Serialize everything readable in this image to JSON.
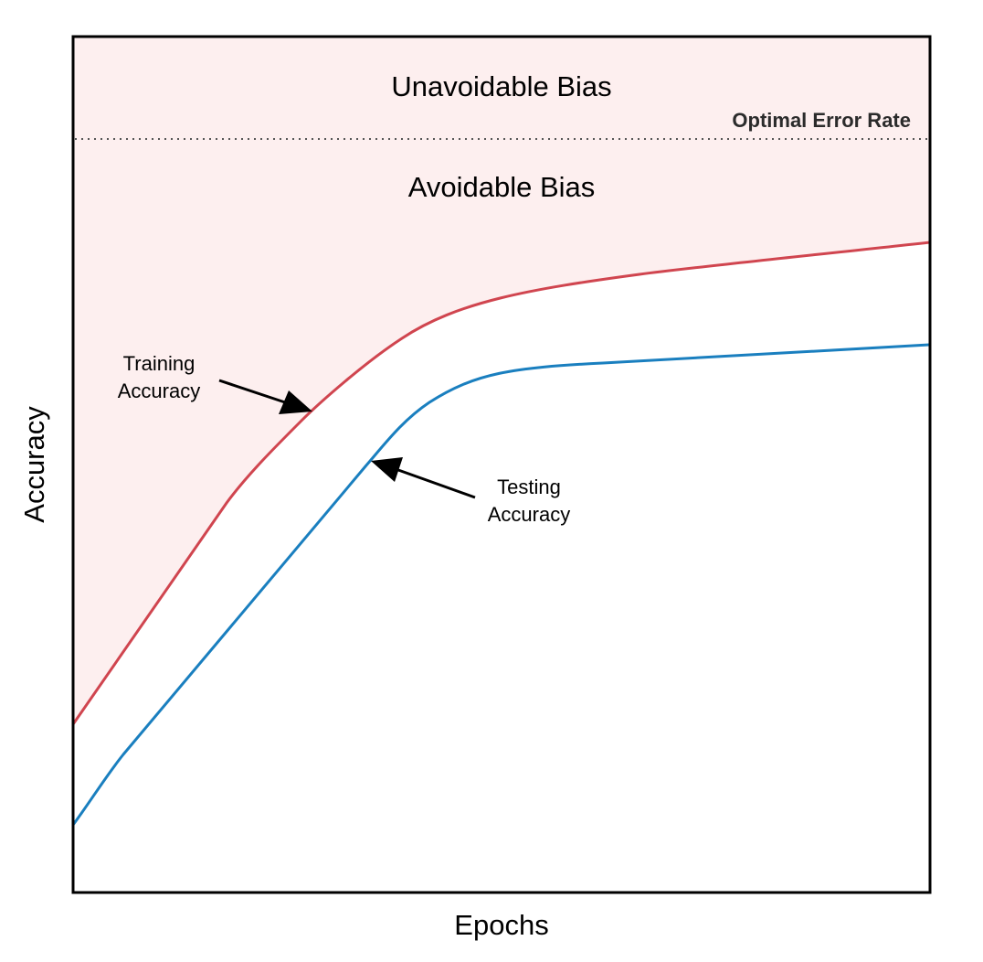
{
  "chart_data": {
    "type": "line",
    "title": "",
    "xlabel": "Epochs",
    "ylabel": "Accuracy",
    "ticks_shown": false,
    "grid": false,
    "reference_line": {
      "label": "Optimal Error Rate",
      "style": "dotted"
    },
    "regions": [
      {
        "name": "unavoidable-bias",
        "label": "Unavoidable Bias"
      },
      {
        "name": "avoidable-bias",
        "label": "Avoidable Bias"
      }
    ],
    "series": [
      {
        "name": "Training Accuracy",
        "color": "#d0454f"
      },
      {
        "name": "Testing Accuracy",
        "color": "#1a7fbf"
      }
    ],
    "annotations": [
      {
        "series": "Training Accuracy",
        "lines": [
          "Training",
          "Accuracy"
        ]
      },
      {
        "series": "Testing Accuracy",
        "lines": [
          "Testing",
          "Accuracy"
        ]
      }
    ],
    "colors": {
      "bias_fill": "#fdefef",
      "frame": "#000000",
      "reference_line": "#555555"
    }
  }
}
